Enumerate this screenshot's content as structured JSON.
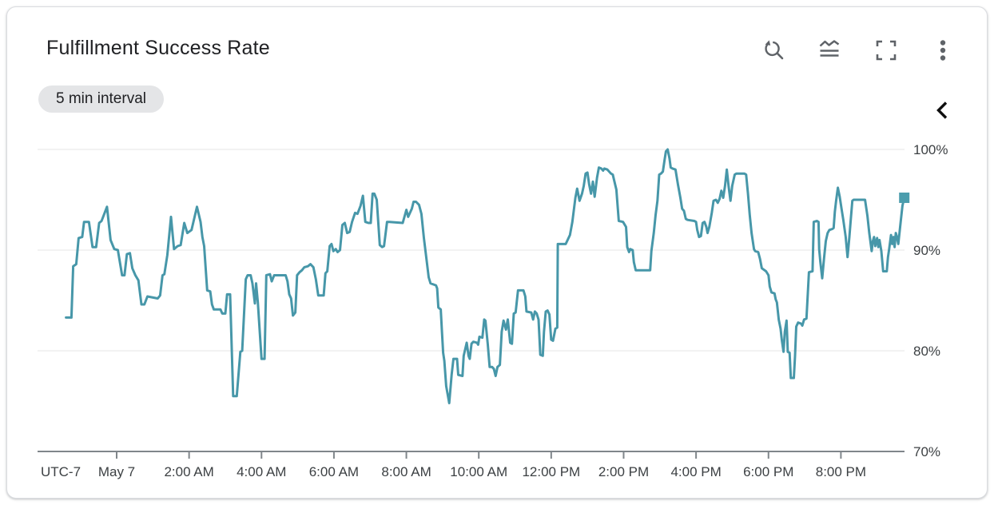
{
  "card": {
    "title": "Fulfillment Success Rate",
    "interval_label": "5 min interval",
    "toolbar_icons": [
      {
        "name": "zoom-reset-icon"
      },
      {
        "name": "legend-toggle-icon"
      },
      {
        "name": "fullscreen-icon"
      },
      {
        "name": "more-options-icon"
      }
    ],
    "collapse_icon": "chevron-left-icon"
  },
  "colors": {
    "line": "#4797A9",
    "marker_fill": "#4B9DAD",
    "grid": "#E9E9E9",
    "axis": "#80868B",
    "tick_label": "#3C4043",
    "title": "#202124",
    "icon": "#5F6368",
    "chip_bg": "#E4E5E7",
    "chip_text": "#202124",
    "card_bg": "#FFFFFF",
    "card_border": "#DADCE0",
    "page_bg": "#FFFFFF",
    "chevron": "#0F0F0F"
  },
  "chart_data": {
    "type": "line",
    "title": "Fulfillment Success Rate",
    "subtitle": "5 min interval",
    "legend_position": "none",
    "grid": "horizontal",
    "end_marker": "square",
    "y_axis": {
      "unit": "%",
      "min": 70,
      "max": 100,
      "tick_values": [
        100,
        90,
        80,
        70
      ],
      "tick_labels": [
        "100%",
        "90%",
        "80%",
        "70%"
      ]
    },
    "x_axis": {
      "timezone_label": "UTC-7",
      "date_label": "May 7",
      "interval_minutes": 5,
      "ticks": [
        {
          "label": "May 7",
          "m": 0
        },
        {
          "label": "2:00 AM",
          "m": 120
        },
        {
          "label": "4:00 AM",
          "m": 240
        },
        {
          "label": "6:00 AM",
          "m": 360
        },
        {
          "label": "8:00 AM",
          "m": 480
        },
        {
          "label": "10:00 AM",
          "m": 600
        },
        {
          "label": "12:00 PM",
          "m": 720
        },
        {
          "label": "2:00 PM",
          "m": 840
        },
        {
          "label": "4:00 PM",
          "m": 960
        },
        {
          "label": "6:00 PM",
          "m": 1080
        },
        {
          "label": "8:00 PM",
          "m": 1200
        }
      ]
    },
    "points": [
      [
        -84,
        83.3
      ],
      [
        -75,
        83.3
      ],
      [
        -72,
        88.4
      ],
      [
        -67,
        88.6
      ],
      [
        -63,
        91.2
      ],
      [
        -57,
        91.3
      ],
      [
        -54,
        92.8
      ],
      [
        -46,
        92.8
      ],
      [
        -40,
        90.3
      ],
      [
        -34,
        90.3
      ],
      [
        -29,
        92.7
      ],
      [
        -25,
        92.9
      ],
      [
        -16,
        94.3
      ],
      [
        -10,
        91.0
      ],
      [
        -4,
        90.1
      ],
      [
        2,
        90.0
      ],
      [
        9,
        87.5
      ],
      [
        13,
        87.5
      ],
      [
        17,
        89.6
      ],
      [
        22,
        89.7
      ],
      [
        26,
        88.2
      ],
      [
        31,
        87.5
      ],
      [
        36,
        87.0
      ],
      [
        41,
        84.6
      ],
      [
        46,
        84.6
      ],
      [
        51,
        85.4
      ],
      [
        68,
        85.2
      ],
      [
        72,
        85.5
      ],
      [
        76,
        87.5
      ],
      [
        79,
        87.6
      ],
      [
        84,
        89.5
      ],
      [
        90,
        93.3
      ],
      [
        95,
        90.1
      ],
      [
        101,
        90.4
      ],
      [
        106,
        90.5
      ],
      [
        112,
        92.7
      ],
      [
        117,
        91.7
      ],
      [
        124,
        92.0
      ],
      [
        133,
        94.3
      ],
      [
        139,
        92.8
      ],
      [
        142,
        91.3
      ],
      [
        145,
        90.4
      ],
      [
        150,
        86.0
      ],
      [
        155,
        85.9
      ],
      [
        158,
        84.6
      ],
      [
        161,
        84.1
      ],
      [
        172,
        84.1
      ],
      [
        175,
        83.7
      ],
      [
        180,
        83.7
      ],
      [
        183,
        85.6
      ],
      [
        188,
        85.6
      ],
      [
        193,
        75.5
      ],
      [
        199,
        75.5
      ],
      [
        205,
        79.9
      ],
      [
        208,
        80.0
      ],
      [
        214,
        87.1
      ],
      [
        217,
        87.5
      ],
      [
        222,
        87.5
      ],
      [
        225,
        86.7
      ],
      [
        229,
        84.7
      ],
      [
        231,
        86.7
      ],
      [
        234,
        84.8
      ],
      [
        240,
        79.2
      ],
      [
        245,
        79.2
      ],
      [
        248,
        87.5
      ],
      [
        254,
        87.6
      ],
      [
        257,
        86.9
      ],
      [
        261,
        87.5
      ],
      [
        269,
        87.5
      ],
      [
        280,
        87.5
      ],
      [
        283,
        86.9
      ],
      [
        286,
        85.6
      ],
      [
        289,
        85.2
      ],
      [
        292,
        83.5
      ],
      [
        296,
        83.8
      ],
      [
        299,
        87.5
      ],
      [
        303,
        87.8
      ],
      [
        307,
        88.0
      ],
      [
        311,
        88.3
      ],
      [
        317,
        88.4
      ],
      [
        321,
        88.6
      ],
      [
        326,
        88.3
      ],
      [
        330,
        87.1
      ],
      [
        334,
        85.5
      ],
      [
        343,
        85.5
      ],
      [
        346,
        87.7
      ],
      [
        349,
        87.9
      ],
      [
        353,
        90.4
      ],
      [
        356,
        90.6
      ],
      [
        359,
        89.9
      ],
      [
        363,
        90.1
      ],
      [
        366,
        89.8
      ],
      [
        370,
        90.0
      ],
      [
        374,
        92.5
      ],
      [
        378,
        92.7
      ],
      [
        382,
        91.7
      ],
      [
        386,
        91.8
      ],
      [
        390,
        92.8
      ],
      [
        395,
        93.7
      ],
      [
        399,
        93.6
      ],
      [
        404,
        94.4
      ],
      [
        408,
        95.4
      ],
      [
        412,
        92.8
      ],
      [
        417,
        92.7
      ],
      [
        421,
        92.7
      ],
      [
        424,
        95.6
      ],
      [
        427,
        95.6
      ],
      [
        431,
        95.0
      ],
      [
        436,
        90.5
      ],
      [
        440,
        90.3
      ],
      [
        443,
        90.4
      ],
      [
        448,
        92.8
      ],
      [
        452,
        92.8
      ],
      [
        474,
        92.7
      ],
      [
        480,
        94.0
      ],
      [
        483,
        93.3
      ],
      [
        489,
        94.1
      ],
      [
        492,
        94.8
      ],
      [
        496,
        94.8
      ],
      [
        501,
        94.5
      ],
      [
        505,
        93.6
      ],
      [
        509,
        91.2
      ],
      [
        514,
        88.8
      ],
      [
        517,
        87.3
      ],
      [
        520,
        86.7
      ],
      [
        529,
        86.5
      ],
      [
        531,
        86.2
      ],
      [
        533,
        84.3
      ],
      [
        537,
        84.1
      ],
      [
        539,
        81.9
      ],
      [
        541,
        79.8
      ],
      [
        543,
        79.0
      ],
      [
        546,
        76.5
      ],
      [
        551,
        74.8
      ],
      [
        555,
        77.6
      ],
      [
        558,
        79.2
      ],
      [
        564,
        79.2
      ],
      [
        566,
        77.6
      ],
      [
        573,
        77.5
      ],
      [
        575,
        79.5
      ],
      [
        580,
        80.8
      ],
      [
        583,
        79.5
      ],
      [
        585,
        79.2
      ],
      [
        588,
        80.7
      ],
      [
        591,
        80.9
      ],
      [
        597,
        80.8
      ],
      [
        599,
        80.6
      ],
      [
        601,
        81.4
      ],
      [
        606,
        81.3
      ],
      [
        609,
        83.1
      ],
      [
        611,
        83.0
      ],
      [
        615,
        80.6
      ],
      [
        618,
        78.4
      ],
      [
        622,
        78.4
      ],
      [
        625,
        78.2
      ],
      [
        628,
        77.5
      ],
      [
        631,
        78.4
      ],
      [
        635,
        78.6
      ],
      [
        638,
        81.9
      ],
      [
        641,
        83.0
      ],
      [
        645,
        82.1
      ],
      [
        648,
        83.1
      ],
      [
        652,
        80.8
      ],
      [
        655,
        80.7
      ],
      [
        658,
        83.7
      ],
      [
        661,
        83.8
      ],
      [
        665,
        86.0
      ],
      [
        674,
        86.0
      ],
      [
        677,
        85.4
      ],
      [
        679,
        83.9
      ],
      [
        687,
        83.8
      ],
      [
        690,
        83.1
      ],
      [
        693,
        83.9
      ],
      [
        696,
        83.7
      ],
      [
        699,
        83.1
      ],
      [
        702,
        79.6
      ],
      [
        706,
        79.5
      ],
      [
        708,
        81.9
      ],
      [
        711,
        83.9
      ],
      [
        714,
        84.0
      ],
      [
        717,
        83.6
      ],
      [
        720,
        81.1
      ],
      [
        723,
        81.0
      ],
      [
        727,
        82.2
      ],
      [
        730,
        82.3
      ],
      [
        731,
        90.6
      ],
      [
        744,
        90.6
      ],
      [
        751,
        91.5
      ],
      [
        755,
        92.8
      ],
      [
        760,
        95.2
      ],
      [
        763,
        96.1
      ],
      [
        767,
        94.9
      ],
      [
        771,
        95.6
      ],
      [
        774,
        96.4
      ],
      [
        777,
        97.6
      ],
      [
        780,
        97.7
      ],
      [
        783,
        96.5
      ],
      [
        786,
        95.6
      ],
      [
        789,
        96.8
      ],
      [
        792,
        95.3
      ],
      [
        796,
        97.2
      ],
      [
        799,
        98.2
      ],
      [
        803,
        98.1
      ],
      [
        806,
        97.9
      ],
      [
        808,
        98.1
      ],
      [
        813,
        98.0
      ],
      [
        819,
        97.6
      ],
      [
        822,
        97.5
      ],
      [
        828,
        96.0
      ],
      [
        832,
        92.9
      ],
      [
        839,
        92.8
      ],
      [
        844,
        92.3
      ],
      [
        846,
        90.3
      ],
      [
        849,
        89.8
      ],
      [
        851,
        90.1
      ],
      [
        855,
        90.0
      ],
      [
        857,
        88.8
      ],
      [
        860,
        88.0
      ],
      [
        884,
        88.0
      ],
      [
        886,
        89.9
      ],
      [
        890,
        91.7
      ],
      [
        893,
        93.5
      ],
      [
        896,
        94.9
      ],
      [
        899,
        97.5
      ],
      [
        902,
        97.6
      ],
      [
        905,
        97.8
      ],
      [
        908,
        99.0
      ],
      [
        910,
        99.8
      ],
      [
        913,
        100.0
      ],
      [
        916,
        99.1
      ],
      [
        918,
        98.2
      ],
      [
        921,
        98.1
      ],
      [
        926,
        98.0
      ],
      [
        930,
        96.5
      ],
      [
        934,
        95.2
      ],
      [
        937,
        94.1
      ],
      [
        940,
        93.9
      ],
      [
        943,
        93.1
      ],
      [
        946,
        93.0
      ],
      [
        957,
        92.9
      ],
      [
        960,
        92.8
      ],
      [
        962,
        92.0
      ],
      [
        965,
        91.3
      ],
      [
        968,
        91.4
      ],
      [
        971,
        92.7
      ],
      [
        974,
        92.8
      ],
      [
        977,
        92.3
      ],
      [
        979,
        91.7
      ],
      [
        982,
        92.3
      ],
      [
        986,
        93.7
      ],
      [
        989,
        94.9
      ],
      [
        993,
        95.0
      ],
      [
        996,
        94.7
      ],
      [
        999,
        95.1
      ],
      [
        1002,
        95.9
      ],
      [
        1005,
        95.2
      ],
      [
        1008,
        96.4
      ],
      [
        1011,
        98.0
      ],
      [
        1014,
        96.3
      ],
      [
        1017,
        94.9
      ],
      [
        1020,
        96.4
      ],
      [
        1024,
        97.5
      ],
      [
        1027,
        97.6
      ],
      [
        1040,
        97.6
      ],
      [
        1043,
        97.5
      ],
      [
        1046,
        95.6
      ],
      [
        1049,
        93.5
      ],
      [
        1052,
        91.7
      ],
      [
        1056,
        90.1
      ],
      [
        1058,
        89.9
      ],
      [
        1063,
        89.8
      ],
      [
        1066,
        89.1
      ],
      [
        1069,
        88.2
      ],
      [
        1076,
        87.9
      ],
      [
        1080,
        87.5
      ],
      [
        1082,
        86.4
      ],
      [
        1085,
        85.8
      ],
      [
        1090,
        85.7
      ],
      [
        1092,
        85.1
      ],
      [
        1094,
        84.8
      ],
      [
        1097,
        83.1
      ],
      [
        1100,
        82.2
      ],
      [
        1102,
        81.1
      ],
      [
        1105,
        79.9
      ],
      [
        1107,
        81.9
      ],
      [
        1110,
        83.0
      ],
      [
        1112,
        79.9
      ],
      [
        1115,
        79.8
      ],
      [
        1117,
        77.3
      ],
      [
        1122,
        77.3
      ],
      [
        1124,
        79.5
      ],
      [
        1126,
        82.4
      ],
      [
        1129,
        82.8
      ],
      [
        1134,
        82.7
      ],
      [
        1136,
        82.5
      ],
      [
        1139,
        83.1
      ],
      [
        1143,
        83.2
      ],
      [
        1147,
        87.8
      ],
      [
        1153,
        87.9
      ],
      [
        1155,
        92.8
      ],
      [
        1160,
        92.9
      ],
      [
        1163,
        92.8
      ],
      [
        1164,
        90.1
      ],
      [
        1166,
        88.8
      ],
      [
        1169,
        87.2
      ],
      [
        1172,
        89.1
      ],
      [
        1175,
        90.9
      ],
      [
        1178,
        91.7
      ],
      [
        1181,
        92.0
      ],
      [
        1186,
        92.1
      ],
      [
        1188,
        92.2
      ],
      [
        1190,
        93.8
      ],
      [
        1192,
        94.9
      ],
      [
        1195,
        96.2
      ],
      [
        1198,
        95.3
      ],
      [
        1201,
        94.1
      ],
      [
        1204,
        93.0
      ],
      [
        1208,
        91.3
      ],
      [
        1211,
        89.3
      ],
      [
        1214,
        91.3
      ],
      [
        1216,
        92.8
      ],
      [
        1219,
        94.9
      ],
      [
        1221,
        95.0
      ],
      [
        1240,
        95.0
      ],
      [
        1244,
        93.4
      ],
      [
        1247,
        91.7
      ],
      [
        1251,
        89.9
      ],
      [
        1253,
        90.9
      ],
      [
        1255,
        91.3
      ],
      [
        1257,
        90.4
      ],
      [
        1260,
        91.2
      ],
      [
        1262,
        90.3
      ],
      [
        1264,
        91.0
      ],
      [
        1267,
        89.9
      ],
      [
        1270,
        87.9
      ],
      [
        1276,
        87.9
      ],
      [
        1278,
        89.3
      ],
      [
        1280,
        90.1
      ],
      [
        1283,
        91.5
      ],
      [
        1285,
        90.6
      ],
      [
        1287,
        91.3
      ],
      [
        1289,
        90.3
      ],
      [
        1291,
        91.7
      ],
      [
        1293,
        91.3
      ],
      [
        1295,
        90.6
      ],
      [
        1297,
        91.7
      ],
      [
        1299,
        92.8
      ],
      [
        1302,
        94.4
      ],
      [
        1305,
        95.2
      ]
    ]
  }
}
